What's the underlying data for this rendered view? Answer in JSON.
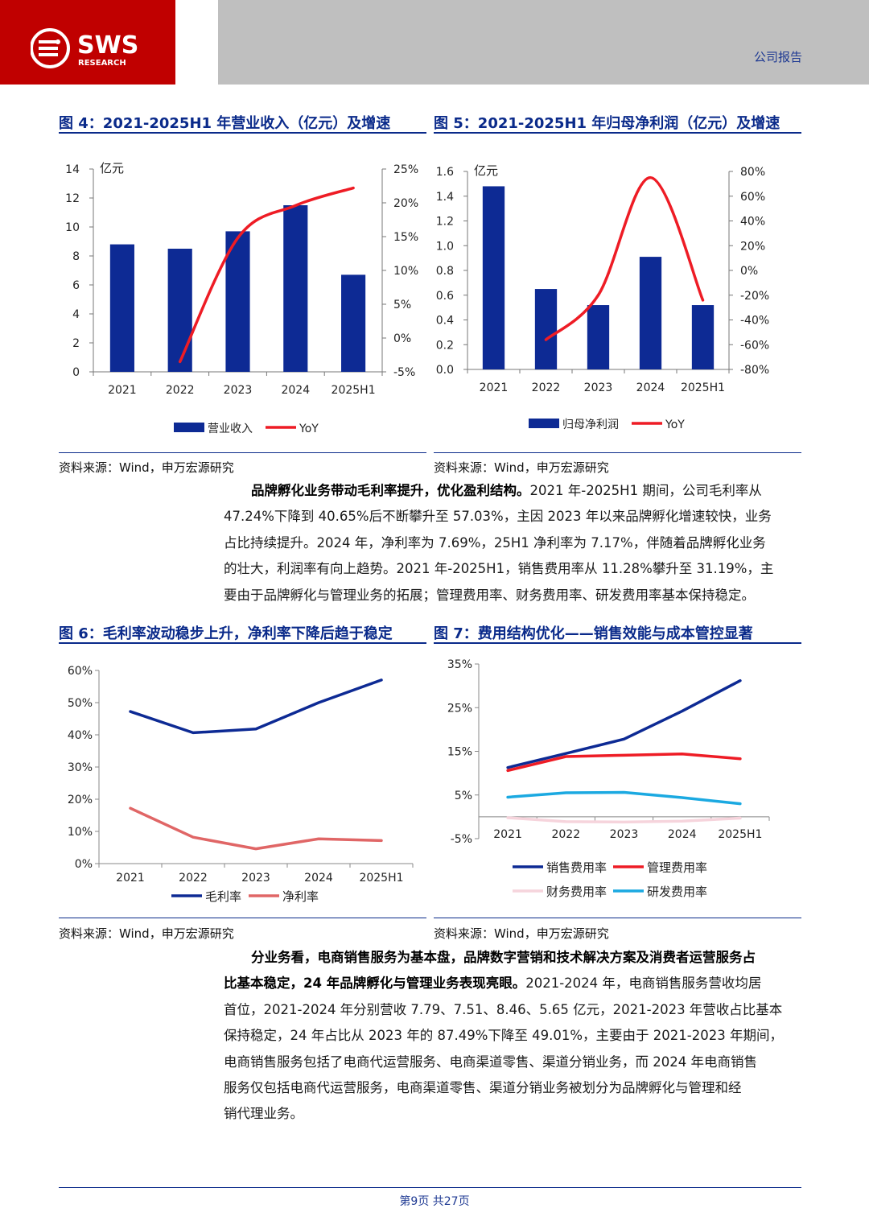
{
  "header": {
    "logo_text": "SWS",
    "logo_sub": "RESEARCH",
    "report_type": "公司报告"
  },
  "fig4": {
    "title": "图 4：2021-2025H1 年营业收入（亿元）及增速",
    "source": "资料来源：Wind，申万宏源研究",
    "chart_data": {
      "type": "bar",
      "categories": [
        "2021",
        "2022",
        "2023",
        "2024",
        "2025H1"
      ],
      "ylabel": "亿元",
      "ylim": [
        0,
        14
      ],
      "yticks": [
        "0",
        "2",
        "4",
        "6",
        "8",
        "10",
        "12",
        "14"
      ],
      "y2lim": [
        -5,
        25
      ],
      "y2ticks": [
        "-5%",
        "0%",
        "5%",
        "10%",
        "15%",
        "20%",
        "25%"
      ],
      "series": [
        {
          "name": "营业收入",
          "type": "bar",
          "color": "#0d2a94",
          "values": [
            8.8,
            8.5,
            9.7,
            11.5,
            6.7
          ]
        },
        {
          "name": "YoY",
          "type": "line",
          "color": "#ee1c25",
          "values": [
            null,
            -3.5,
            14.8,
            19.6,
            22.2
          ]
        }
      ],
      "legend": "bottom"
    }
  },
  "fig5": {
    "title": "图 5：2021-2025H1 年归母净利润（亿元）及增速",
    "source": "资料来源：Wind，申万宏源研究",
    "chart_data": {
      "type": "bar",
      "categories": [
        "2021",
        "2022",
        "2023",
        "2024",
        "2025H1"
      ],
      "ylabel": "亿元",
      "ylim": [
        0,
        1.6
      ],
      "yticks": [
        "0.0",
        "0.2",
        "0.4",
        "0.6",
        "0.8",
        "1.0",
        "1.2",
        "1.4",
        "1.6"
      ],
      "y2lim": [
        -80,
        80
      ],
      "y2ticks": [
        "-80%",
        "-60%",
        "-40%",
        "-20%",
        "0%",
        "20%",
        "40%",
        "60%",
        "80%"
      ],
      "series": [
        {
          "name": "归母净利润",
          "type": "bar",
          "color": "#0d2a94",
          "values": [
            1.48,
            0.65,
            0.52,
            0.91,
            0.52
          ]
        },
        {
          "name": "YoY",
          "type": "line",
          "color": "#ee1c25",
          "values": [
            null,
            -56,
            -20,
            75,
            -24
          ]
        }
      ],
      "legend": "bottom"
    }
  },
  "para1": {
    "bold": "品牌孵化业务带动毛利率提升，优化盈利结构。",
    "lines": [
      "2021 年-2025H1 期间，公司毛利率从",
      "47.24%下降到 40.65%后不断攀升至 57.03%，主因 2023 年以来品牌孵化增速较快，业务",
      "占比持续提升。2024 年，净利率为 7.69%，25H1 净利率为 7.17%，伴随着品牌孵化业务",
      "的壮大，利润率有向上趋势。2021 年-2025H1，销售费用率从 11.28%攀升至 31.19%，主",
      "要由于品牌孵化与管理业务的拓展；管理费用率、财务费用率、研发费用率基本保持稳定。"
    ]
  },
  "fig6": {
    "title": "图 6：毛利率波动稳步上升，净利率下降后趋于稳定",
    "source": "资料来源：Wind，申万宏源研究",
    "chart_data": {
      "type": "line",
      "categories": [
        "2021",
        "2022",
        "2023",
        "2024",
        "2025H1"
      ],
      "ylim": [
        0,
        60
      ],
      "yticks": [
        "0%",
        "10%",
        "20%",
        "30%",
        "40%",
        "50%",
        "60%"
      ],
      "series": [
        {
          "name": "毛利率",
          "color": "#0d2a94",
          "values": [
            47.24,
            40.65,
            41.8,
            50.0,
            57.03
          ]
        },
        {
          "name": "净利率",
          "color": "#e06666",
          "values": [
            17.2,
            8.2,
            4.6,
            7.69,
            7.17
          ]
        }
      ],
      "legend": "bottom"
    }
  },
  "fig7": {
    "title": "图 7：费用结构优化——销售效能与成本管控显著",
    "source": "资料来源：Wind，申万宏源研究",
    "chart_data": {
      "type": "line",
      "categories": [
        "2021",
        "2022",
        "2023",
        "2024",
        "2025H1"
      ],
      "ylim": [
        -5,
        35
      ],
      "yticks": [
        "-5%",
        "5%",
        "15%",
        "25%",
        "35%"
      ],
      "series": [
        {
          "name": "销售费用率",
          "color": "#0d2a94",
          "values": [
            11.28,
            14.5,
            17.8,
            24.2,
            31.19
          ]
        },
        {
          "name": "管理费用率",
          "color": "#ee1c25",
          "values": [
            10.6,
            13.8,
            14.1,
            14.4,
            13.3
          ]
        },
        {
          "name": "财务费用率",
          "color": "#f6d4dc",
          "values": [
            -0.2,
            -1.1,
            -1.2,
            -1.0,
            -0.3
          ]
        },
        {
          "name": "研发费用率",
          "color": "#1ba9e1",
          "values": [
            4.5,
            5.5,
            5.6,
            4.4,
            3.0
          ]
        }
      ],
      "legend": "bottom"
    }
  },
  "para2": {
    "bold1": "分业务看，电商销售服务为基本盘，品牌数字营销和技术解决方案及消费者运营服务占",
    "bold2": "比基本稳定，24 年品牌孵化与管理业务表现亮眼。",
    "line2rest": "2021-2024 年，电商销售服务营收均居",
    "lines": [
      "首位，2021-2024 年分别营收 7.79、7.51、8.46、5.65 亿元，2021-2023 年营收占比基本",
      "保持稳定，24 年占比从 2023 年的 87.49%下降至 49.01%，主要由于 2021-2023 年期间，",
      "电商销售服务包括了电商代运营服务、电商渠道零售、渠道分销业务，而 2024 年电商销售",
      "服务仅包括电商代运营服务，电商渠道零售、渠道分销业务被划分为品牌孵化与管理和经",
      "销代理业务。"
    ]
  },
  "footer": {
    "page": "第9页  共27页"
  }
}
